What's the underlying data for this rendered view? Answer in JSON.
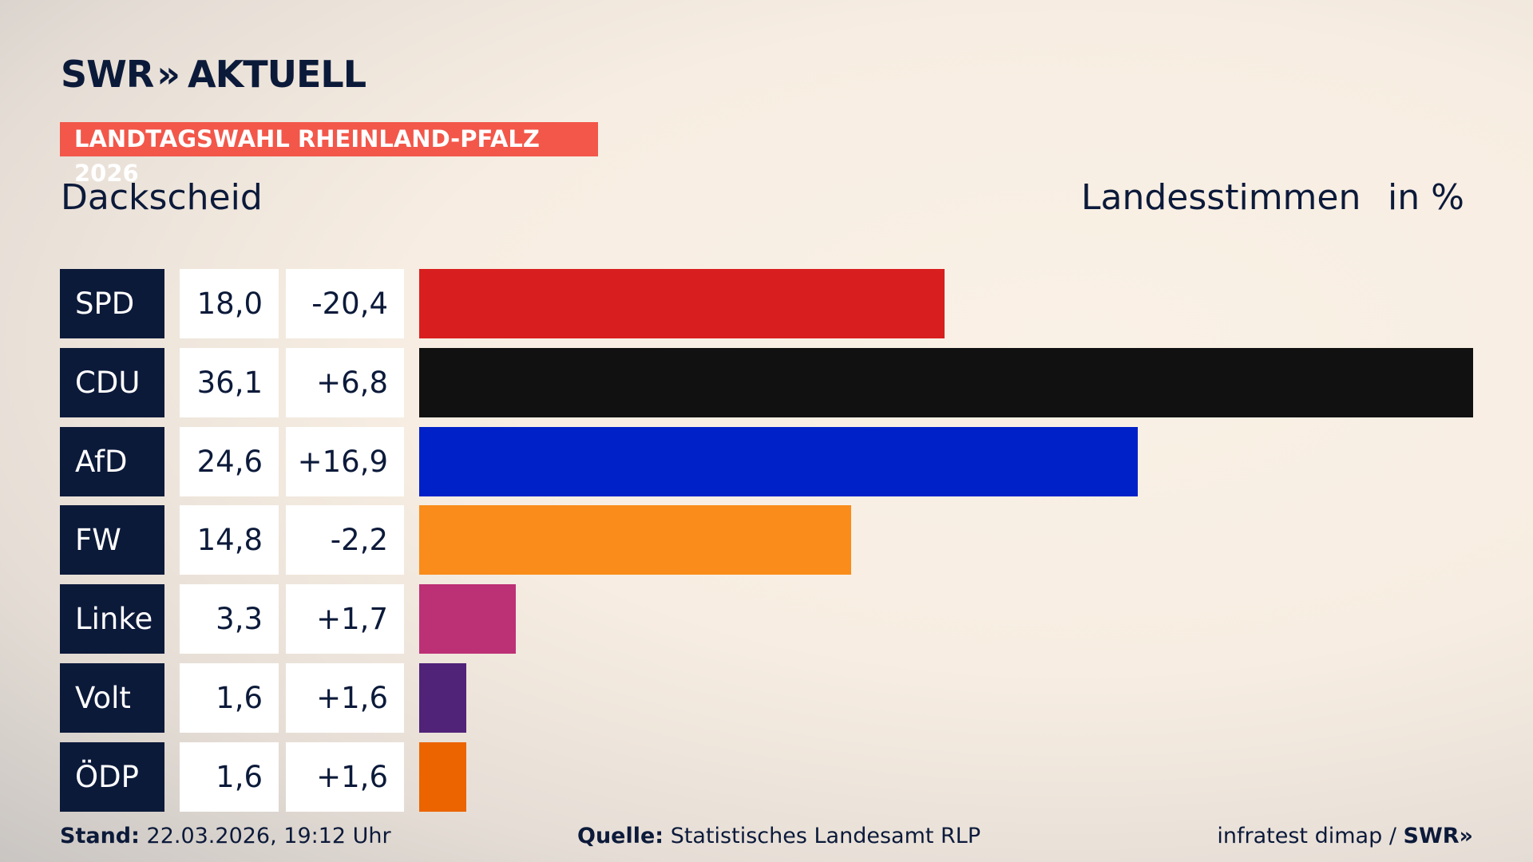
{
  "logo": {
    "brand": "SWR",
    "name": "AKTUELL"
  },
  "banner": "LANDTAGSWAHL RHEINLAND-PFALZ 2026",
  "chart_data": {
    "type": "bar",
    "title": "Dackscheid",
    "subtitle": "Landesstimmen",
    "unit": "in %",
    "categories": [
      "SPD",
      "CDU",
      "AfD",
      "FW",
      "Linke",
      "Volt",
      "ÖDP"
    ],
    "values": [
      18.0,
      36.1,
      24.6,
      14.8,
      3.3,
      1.6,
      1.6
    ],
    "value_labels": [
      "18,0",
      "36,1",
      "24,6",
      "14,8",
      "3,3",
      "1,6",
      "1,6"
    ],
    "changes": [
      "-20,4",
      "+6,8",
      "+16,9",
      "-2,2",
      "+1,7",
      "+1,6",
      "+1,6"
    ],
    "colors": [
      "#d81e1e",
      "#111111",
      "#0021c8",
      "#f98c1a",
      "#bc3076",
      "#502379",
      "#eb6400"
    ]
  },
  "footer": {
    "stand_label": "Stand:",
    "stand": "22.03.2026, 19:12 Uhr",
    "source_label": "Quelle:",
    "source": "Statistisches Landesamt RLP",
    "credit": "infratest dimap /",
    "credit_brand": "SWR"
  }
}
